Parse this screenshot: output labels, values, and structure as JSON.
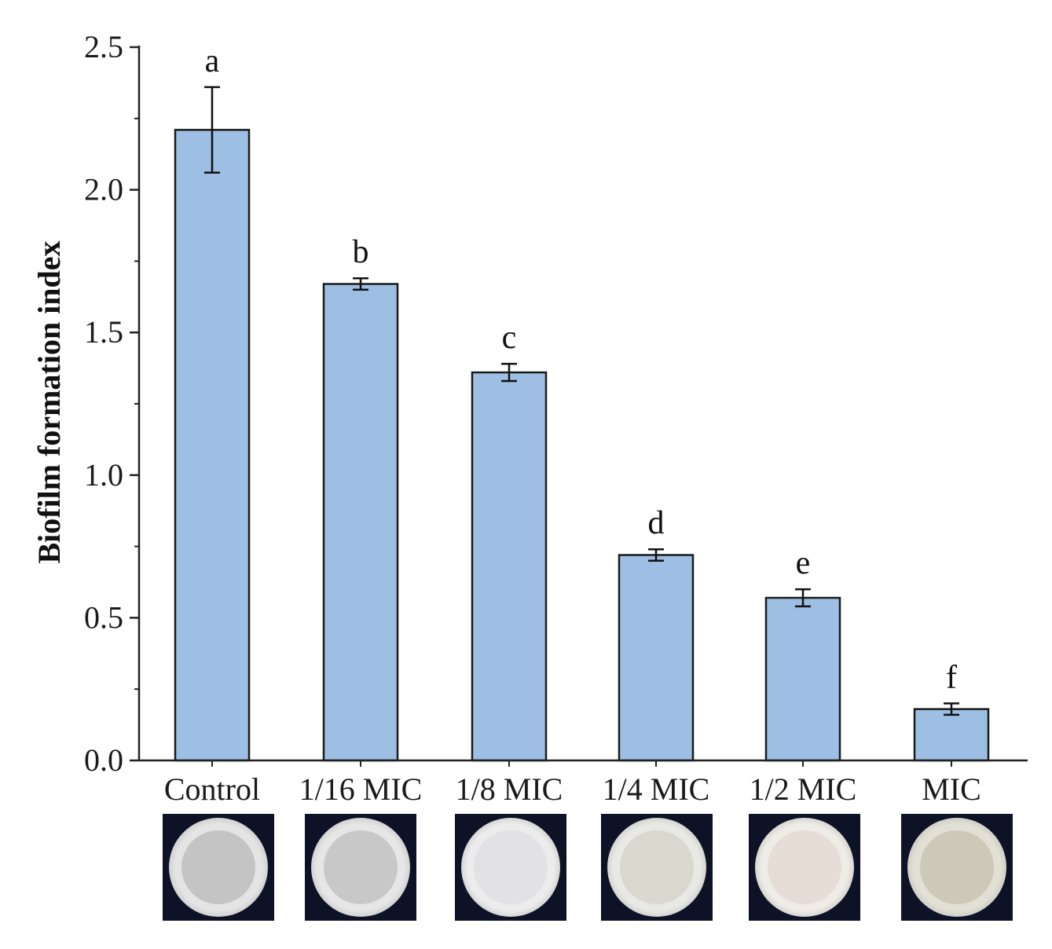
{
  "chart_data": {
    "type": "bar",
    "title": "",
    "xlabel": "",
    "ylabel": "Biofilm formation index",
    "ylim": [
      0,
      2.5
    ],
    "yticks": [
      "0.0",
      "0.5",
      "1.0",
      "1.5",
      "2.0",
      "2.5"
    ],
    "categories": [
      "Control",
      "1/16 MIC",
      "1/8 MIC",
      "1/4 MIC",
      "1/2 MIC",
      "MIC"
    ],
    "values": [
      2.21,
      1.67,
      1.36,
      0.72,
      0.57,
      0.18
    ],
    "errors": [
      0.15,
      0.02,
      0.03,
      0.02,
      0.03,
      0.02
    ],
    "significance_letters": [
      "a",
      "b",
      "c",
      "d",
      "e",
      "f"
    ],
    "bar_color": "#9dbfe3",
    "bar_edge_color": "#1a1a1a",
    "grid": false,
    "legend": "none"
  },
  "wells": [
    {
      "category": "Control",
      "tint": "#c4c4c4",
      "rim": "#e4e4e4"
    },
    {
      "category": "1/16 MIC",
      "tint": "#c8c8c8",
      "rim": "#e6e6e6"
    },
    {
      "category": "1/8 MIC",
      "tint": "#e2e2e4",
      "rim": "#ececec"
    },
    {
      "category": "1/4 MIC",
      "tint": "#d8d8cf",
      "rim": "#e8e8e4"
    },
    {
      "category": "1/2 MIC",
      "tint": "#e6ddd6",
      "rim": "#efebe6"
    },
    {
      "category": "MIC",
      "tint": "#cdc9b8",
      "rim": "#e2dfd4"
    }
  ]
}
